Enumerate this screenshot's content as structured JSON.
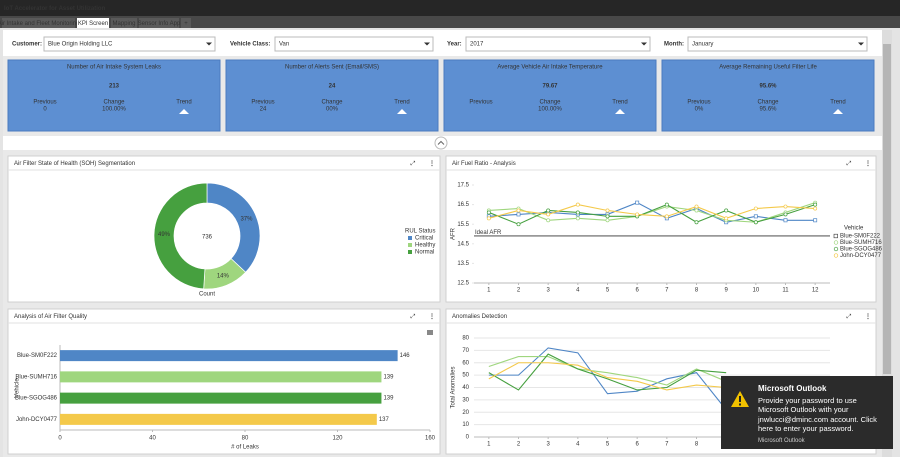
{
  "app_title": "IoT Accelerator for Asset Utilization",
  "tabs": [
    "Air Intake and Fleet Monitoring",
    "KPI Screen",
    "Mapping",
    "Sensor Info App",
    "+"
  ],
  "filters": [
    {
      "label": "Customer:",
      "value": "Blue Origin Holding LLC"
    },
    {
      "label": "Vehicle Class:",
      "value": "Van"
    },
    {
      "label": "Year:",
      "value": "2017"
    },
    {
      "label": "Month:",
      "value": "January"
    }
  ],
  "kpis": [
    {
      "title": "Number of Air Intake System Leaks",
      "value": "213",
      "previous_label": "Previous",
      "previous": "0",
      "change_label": "Change",
      "change": "100.00%",
      "trend_label": "Trend"
    },
    {
      "title": "Number of Alerts Sent (Email/SMS)",
      "value": "24",
      "previous_label": "Previous",
      "previous": "24",
      "change_label": "Change",
      "change": "00%",
      "trend_label": "Trend"
    },
    {
      "title": "Average Vehicle Air Intake Temperature",
      "value": "79.67",
      "previous_label": "Previous",
      "change_label": "Change",
      "change": "100.00%",
      "trend_label": "Trend"
    },
    {
      "title": "Average Remaining Useful Filter Life",
      "value": "95.6%",
      "previous_label": "Previous",
      "previous": "0%",
      "change_label": "Change",
      "change": "95.6%",
      "trend_label": "Trend"
    }
  ],
  "chart_data": [
    {
      "type": "donut",
      "title": "Air Filter State of Health (SOH) Segmentation",
      "center_label": 736,
      "xlabel": "Count",
      "legend_title": "RUL Status",
      "categories": [
        "Critical",
        "Healthy",
        "Normal"
      ],
      "values": [
        37,
        14,
        49
      ],
      "value_labels": [
        "37%",
        "14%",
        "49%"
      ],
      "colors": [
        "#4f86c6",
        "#9fd67e",
        "#46a03f"
      ]
    },
    {
      "type": "line",
      "title": "Air Fuel Ratio - Analysis",
      "ylabel": "AFR",
      "legend_title": "Vehicle",
      "x": [
        1,
        2,
        3,
        4,
        5,
        6,
        7,
        8,
        9,
        10,
        11,
        12
      ],
      "xlim": [
        0.5,
        12.5
      ],
      "xticks": [
        1,
        2,
        3,
        4,
        5,
        6,
        7,
        8,
        9,
        10,
        11,
        12
      ],
      "ylim": [
        12.5,
        17.5
      ],
      "yticks": [
        12.5,
        13.5,
        14.5,
        15.5,
        16.5,
        17.5
      ],
      "grid": false,
      "reference_line": {
        "label": "Ideal AFR",
        "value": 14.9
      },
      "series": [
        {
          "name": "Blue-SM0F222",
          "color": "#4f86c6",
          "values": [
            15.9,
            16.0,
            16.1,
            16.0,
            16.0,
            16.6,
            15.8,
            16.3,
            15.6,
            15.9,
            15.7,
            15.7
          ]
        },
        {
          "name": "Blue-SUMH716",
          "color": "#9fd67e",
          "values": [
            16.2,
            16.3,
            15.7,
            15.8,
            15.7,
            15.9,
            16.4,
            16.2,
            15.7,
            15.6,
            16.1,
            16.6
          ]
        },
        {
          "name": "Blue-SGOG486",
          "color": "#46a03f",
          "values": [
            16.1,
            15.5,
            16.2,
            16.1,
            15.9,
            15.9,
            16.5,
            15.6,
            16.2,
            15.6,
            16.0,
            16.5
          ]
        },
        {
          "name": "John-DCY0477",
          "color": "#f4c94a",
          "values": [
            15.8,
            16.2,
            16.0,
            16.5,
            16.2,
            16.0,
            15.9,
            16.4,
            15.8,
            16.3,
            16.4,
            16.3
          ]
        }
      ]
    },
    {
      "type": "barh",
      "title": "Analysis of Air Filter Quality",
      "xlabel": "# of Leaks",
      "ylabel": "Vehicle",
      "categories": [
        "Blue-SM0F222",
        "Blue-SUMH716",
        "Blue-SGOG486",
        "John-DCY0477"
      ],
      "values": [
        146,
        139,
        139,
        137
      ],
      "colors": [
        "#4f86c6",
        "#9fd67e",
        "#46a03f",
        "#f4c94a"
      ],
      "xlim": [
        0,
        160
      ],
      "xticks": [
        0,
        40,
        80,
        120,
        160
      ]
    },
    {
      "type": "line",
      "title": "Anomalies Detection",
      "ylabel": "Total Anomalies",
      "x": [
        1,
        2,
        3,
        4,
        5,
        6,
        7,
        8,
        9
      ],
      "xlim": [
        0.5,
        12.5
      ],
      "xticks": [
        1,
        2,
        3,
        4,
        5,
        6,
        7,
        8,
        9,
        10,
        11,
        12
      ],
      "ylim": [
        0,
        80
      ],
      "yticks": [
        0,
        10,
        20,
        30,
        40,
        50,
        60,
        70,
        80
      ],
      "grid": true,
      "series": [
        {
          "name": "Blue-SM0F222",
          "color": "#4f86c6",
          "values": [
            50,
            50,
            72,
            68,
            35,
            37,
            47,
            52,
            22
          ]
        },
        {
          "name": "Blue-SUMH716",
          "color": "#9fd67e",
          "values": [
            57,
            65,
            65,
            55,
            52,
            48,
            42,
            55,
            45
          ]
        },
        {
          "name": "Blue-SGOG486",
          "color": "#46a03f",
          "values": [
            52,
            38,
            67,
            55,
            47,
            38,
            40,
            54,
            52
          ]
        },
        {
          "name": "John-DCY0477",
          "color": "#f4c94a",
          "values": [
            47,
            60,
            60,
            58,
            48,
            45,
            38,
            42,
            40
          ]
        }
      ]
    }
  ],
  "toast": {
    "title": "Microsoft Outlook",
    "body": "Provide your password to use Microsoft Outlook with your jnwlucci@dminc.com account. Click here to enter your password.",
    "source": "Microsoft Outlook"
  }
}
